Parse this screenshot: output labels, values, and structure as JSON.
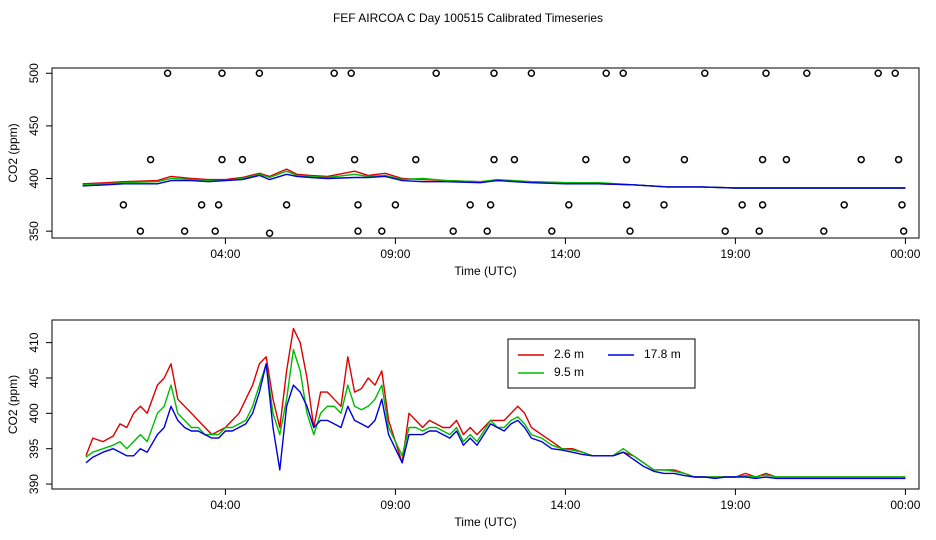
{
  "figure_title": "FEF AIRCOA C  Day 100515  Calibrated Timeseries",
  "colors": {
    "red": "#dd0000",
    "green": "#00bb00",
    "blue": "#0000dd",
    "axis": "#000000"
  },
  "chart_data": [
    {
      "type": "scatter",
      "title": "",
      "xlabel": "Time (UTC)",
      "ylabel": "CO2 (ppm)",
      "xlim": [
        -1.1,
        24.4
      ],
      "ylim": [
        343.5,
        505
      ],
      "x_ticks": [
        4,
        9,
        14,
        19,
        24
      ],
      "x_tick_labels": [
        "04:00",
        "09:00",
        "14:00",
        "19:00",
        "00:00"
      ],
      "y_ticks": [
        350,
        400,
        450,
        500
      ],
      "y_tick_labels": [
        "350",
        "400",
        "450",
        "500"
      ],
      "grid": false,
      "legend": null,
      "points_style": "open-circle",
      "points": [
        [
          1.5,
          350
        ],
        [
          1.0,
          375
        ],
        [
          1.8,
          418
        ],
        [
          2.3,
          500
        ],
        [
          2.8,
          350
        ],
        [
          3.3,
          375
        ],
        [
          3.7,
          350
        ],
        [
          3.8,
          375
        ],
        [
          3.9,
          418
        ],
        [
          3.9,
          500
        ],
        [
          4.5,
          418
        ],
        [
          5.0,
          500
        ],
        [
          5.3,
          348
        ],
        [
          5.8,
          375
        ],
        [
          6.5,
          418
        ],
        [
          7.2,
          500
        ],
        [
          7.7,
          500
        ],
        [
          7.8,
          418
        ],
        [
          7.9,
          350
        ],
        [
          7.9,
          375
        ],
        [
          8.6,
          350
        ],
        [
          9.0,
          375
        ],
        [
          9.6,
          418
        ],
        [
          10.2,
          500
        ],
        [
          10.7,
          350
        ],
        [
          11.2,
          375
        ],
        [
          11.7,
          350
        ],
        [
          11.8,
          375
        ],
        [
          11.9,
          418
        ],
        [
          11.9,
          500
        ],
        [
          12.5,
          418
        ],
        [
          13.0,
          500
        ],
        [
          13.6,
          350
        ],
        [
          14.1,
          375
        ],
        [
          14.6,
          418
        ],
        [
          15.2,
          500
        ],
        [
          15.7,
          500
        ],
        [
          15.8,
          418
        ],
        [
          15.8,
          375
        ],
        [
          15.9,
          350
        ],
        [
          16.9,
          375
        ],
        [
          17.5,
          418
        ],
        [
          18.1,
          500
        ],
        [
          18.7,
          350
        ],
        [
          19.2,
          375
        ],
        [
          19.7,
          350
        ],
        [
          19.8,
          375
        ],
        [
          19.8,
          418
        ],
        [
          19.9,
          500
        ],
        [
          20.5,
          418
        ],
        [
          21.1,
          500
        ],
        [
          21.6,
          350
        ],
        [
          22.2,
          375
        ],
        [
          22.7,
          418
        ],
        [
          23.2,
          500
        ],
        [
          23.7,
          500
        ],
        [
          23.8,
          418
        ],
        [
          23.9,
          375
        ],
        [
          23.95,
          350
        ]
      ],
      "series": [
        {
          "name": "2.6 m",
          "color": "#dd0000",
          "x": [
            -0.2,
            0.5,
            1,
            2,
            2.4,
            3,
            3.5,
            4,
            4.5,
            5,
            5.3,
            5.8,
            6.1,
            6.5,
            7,
            7.8,
            8.2,
            8.7,
            9.2,
            9.8,
            10.5,
            11.5,
            12,
            13,
            14,
            15,
            16,
            17,
            18,
            19,
            20,
            21,
            22,
            23,
            24
          ],
          "values": [
            395,
            396,
            397,
            398,
            402,
            400,
            399,
            399,
            401,
            405,
            402,
            409,
            404,
            403,
            402,
            407,
            403,
            405,
            400,
            399,
            398,
            397,
            398,
            397,
            396,
            395,
            394,
            392,
            392,
            391,
            391,
            391,
            391,
            391,
            391
          ]
        },
        {
          "name": "9.5 m",
          "color": "#00bb00",
          "x": [
            -0.2,
            0.5,
            1,
            2,
            2.4,
            3,
            3.5,
            4,
            4.5,
            5,
            5.3,
            5.8,
            6.1,
            6.5,
            7,
            7.8,
            8.2,
            8.7,
            9.2,
            9.8,
            10.5,
            11.5,
            12,
            13,
            14,
            15,
            16,
            17,
            18,
            19,
            20,
            21,
            22,
            23,
            24
          ],
          "values": [
            394,
            395,
            396,
            397,
            400,
            399,
            398,
            398,
            400,
            404,
            401,
            407,
            403,
            402,
            401,
            404,
            402,
            403,
            399,
            400,
            398,
            397,
            399,
            397,
            396,
            396,
            394,
            392,
            392,
            391,
            391,
            391,
            391,
            391,
            391
          ]
        },
        {
          "name": "17.8 m",
          "color": "#0000dd",
          "x": [
            -0.2,
            0.5,
            1,
            2,
            2.4,
            3,
            3.5,
            4,
            4.5,
            5,
            5.3,
            5.8,
            6.1,
            6.5,
            7,
            7.8,
            8.2,
            8.7,
            9.2,
            9.8,
            10.5,
            11.5,
            12,
            13,
            14,
            15,
            16,
            17,
            18,
            19,
            20,
            21,
            22,
            23,
            24
          ],
          "values": [
            393,
            394,
            395,
            395,
            398,
            398,
            397,
            398,
            399,
            403,
            399,
            404,
            402,
            401,
            400,
            401,
            401,
            402,
            398,
            397,
            397,
            396,
            398,
            396,
            395,
            395,
            394,
            392,
            392,
            391,
            391,
            391,
            391,
            391,
            391
          ]
        }
      ]
    },
    {
      "type": "line",
      "title": "",
      "xlabel": "Time (UTC)",
      "ylabel": "CO2 (ppm)",
      "xlim": [
        -1.1,
        24.4
      ],
      "ylim": [
        389.3,
        413.2
      ],
      "x_ticks": [
        4,
        9,
        14,
        19,
        24
      ],
      "x_tick_labels": [
        "04:00",
        "09:00",
        "14:00",
        "19:00",
        "00:00"
      ],
      "y_ticks": [
        390,
        395,
        400,
        405,
        410
      ],
      "y_tick_labels": [
        "390",
        "395",
        "400",
        "405",
        "410"
      ],
      "grid": false,
      "legend": {
        "position": "top-right",
        "entries": [
          "2.6 m",
          "9.5 m",
          "17.8 m"
        ]
      },
      "x": [
        -0.1,
        0.1,
        0.4,
        0.7,
        0.9,
        1.1,
        1.3,
        1.5,
        1.7,
        2.0,
        2.2,
        2.4,
        2.6,
        2.8,
        3.0,
        3.2,
        3.4,
        3.6,
        3.8,
        4.0,
        4.2,
        4.4,
        4.6,
        4.8,
        5.0,
        5.2,
        5.4,
        5.6,
        5.8,
        6.0,
        6.2,
        6.4,
        6.6,
        6.8,
        7.0,
        7.2,
        7.4,
        7.6,
        7.8,
        8.0,
        8.2,
        8.4,
        8.6,
        8.8,
        9.0,
        9.2,
        9.4,
        9.6,
        9.8,
        10.0,
        10.2,
        10.4,
        10.6,
        10.8,
        11.0,
        11.2,
        11.4,
        11.6,
        11.8,
        12.0,
        12.2,
        12.4,
        12.6,
        12.8,
        13.0,
        13.3,
        13.6,
        13.9,
        14.2,
        14.5,
        14.8,
        15.1,
        15.4,
        15.7,
        16.0,
        16.3,
        16.6,
        16.9,
        17.2,
        17.5,
        17.8,
        18.1,
        18.4,
        18.7,
        19.0,
        19.3,
        19.6,
        19.9,
        20.2,
        20.5,
        20.8,
        21.1,
        21.4,
        21.7,
        22.0,
        22.3,
        22.6,
        22.9,
        23.2,
        23.5,
        23.8,
        24.0
      ],
      "series": [
        {
          "name": "2.6 m",
          "color": "#dd0000",
          "values": [
            394.0,
            396.5,
            396.0,
            396.8,
            398.5,
            398.0,
            400.0,
            401.0,
            400.0,
            404.0,
            405.0,
            407.0,
            402.0,
            401.0,
            400.0,
            399.0,
            398.0,
            397.0,
            397.5,
            398.0,
            399.0,
            400.0,
            402.0,
            404.0,
            407.0,
            408.0,
            402.0,
            398.0,
            406.0,
            412.0,
            410.0,
            405.0,
            398.0,
            403.0,
            403.0,
            402.0,
            401.0,
            408.0,
            403.0,
            403.5,
            405.0,
            404.0,
            406.0,
            399.0,
            396.0,
            393.0,
            400.0,
            399.0,
            398.0,
            399.0,
            398.5,
            398.0,
            398.0,
            399.0,
            397.0,
            398.0,
            397.0,
            398.0,
            399.0,
            399.0,
            399.0,
            400.0,
            401.0,
            400.0,
            398.0,
            397.0,
            396.0,
            395.0,
            395.0,
            394.5,
            394.0,
            394.0,
            394.0,
            394.5,
            394.0,
            393.0,
            392.0,
            392.0,
            392.0,
            391.5,
            391.0,
            391.0,
            391.0,
            391.0,
            391.0,
            391.5,
            391.0,
            391.5,
            391.0,
            391.0,
            391.0,
            391.0,
            391.0,
            391.0,
            391.0,
            391.0,
            391.0,
            391.0,
            391.0,
            391.0,
            391.0,
            391.0
          ]
        },
        {
          "name": "9.5 m",
          "color": "#00bb00",
          "values": [
            393.8,
            394.5,
            395.0,
            395.5,
            396.0,
            395.0,
            396.0,
            397.0,
            396.0,
            400.0,
            401.0,
            404.0,
            400.0,
            399.0,
            398.0,
            398.0,
            397.0,
            397.0,
            397.0,
            398.0,
            398.0,
            398.5,
            399.0,
            401.0,
            404.0,
            407.0,
            400.0,
            397.0,
            402.0,
            409.0,
            406.0,
            400.0,
            397.0,
            400.0,
            401.0,
            401.0,
            400.0,
            404.0,
            401.0,
            400.5,
            401.0,
            402.0,
            404.0,
            398.0,
            396.0,
            394.0,
            398.0,
            398.0,
            397.5,
            398.0,
            398.0,
            397.5,
            397.0,
            398.0,
            396.0,
            397.0,
            396.0,
            397.5,
            399.0,
            398.0,
            398.0,
            399.0,
            399.5,
            398.5,
            397.0,
            396.5,
            395.5,
            395.0,
            394.8,
            394.5,
            394.0,
            394.0,
            394.0,
            395.0,
            394.0,
            393.0,
            392.0,
            392.0,
            391.8,
            391.5,
            391.0,
            391.0,
            391.0,
            391.0,
            391.0,
            391.2,
            391.0,
            391.3,
            391.0,
            391.0,
            391.0,
            391.0,
            391.0,
            391.0,
            391.0,
            391.0,
            391.0,
            391.0,
            391.0,
            391.0,
            391.0,
            391.0
          ]
        },
        {
          "name": "17.8 m",
          "color": "#0000dd",
          "values": [
            393.0,
            393.8,
            394.5,
            395.0,
            394.5,
            394.0,
            394.0,
            395.0,
            394.5,
            397.0,
            398.0,
            401.0,
            399.0,
            398.0,
            397.5,
            397.5,
            397.0,
            396.5,
            396.5,
            397.5,
            397.5,
            398.0,
            398.5,
            400.0,
            403.0,
            407.0,
            398.0,
            392.0,
            401.0,
            404.0,
            403.0,
            401.0,
            398.0,
            399.0,
            399.0,
            398.5,
            398.0,
            401.0,
            399.0,
            398.5,
            398.0,
            399.0,
            402.0,
            397.0,
            395.0,
            393.0,
            397.0,
            397.0,
            397.0,
            397.5,
            397.5,
            397.0,
            396.5,
            397.5,
            395.5,
            396.5,
            395.5,
            397.0,
            398.5,
            398.0,
            397.5,
            398.5,
            399.0,
            398.0,
            396.5,
            396.0,
            395.0,
            394.8,
            394.5,
            394.2,
            394.0,
            394.0,
            394.0,
            394.5,
            393.5,
            392.5,
            391.8,
            391.5,
            391.5,
            391.2,
            391.0,
            391.0,
            390.8,
            391.0,
            391.0,
            391.0,
            390.8,
            391.0,
            390.8,
            390.8,
            390.8,
            390.8,
            390.8,
            390.8,
            390.8,
            390.8,
            390.8,
            390.8,
            390.8,
            390.8,
            390.8,
            390.8
          ]
        }
      ]
    }
  ]
}
